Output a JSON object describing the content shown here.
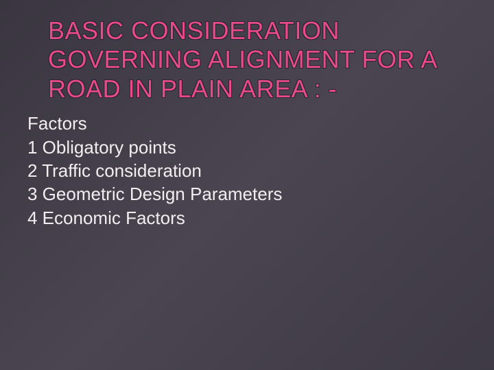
{
  "title": {
    "text": "BASIC CONSIDERATION GOVERNING ALIGNMENT FOR A ROAD IN PLAIN AREA : -",
    "color": "#e94b8a",
    "outline_color": "#2a2530",
    "fontsize": 36
  },
  "content": {
    "heading": "Factors",
    "items": [
      "1 Obligatory points",
      "2 Traffic consideration",
      "3 Geometric Design Parameters",
      "4 Economic Factors"
    ],
    "text_color": "#f2eef0",
    "fontsize": 26
  },
  "background": {
    "gradient_from": "#3a3640",
    "gradient_mid": "#4a4550",
    "gradient_to": "#3d3945"
  }
}
